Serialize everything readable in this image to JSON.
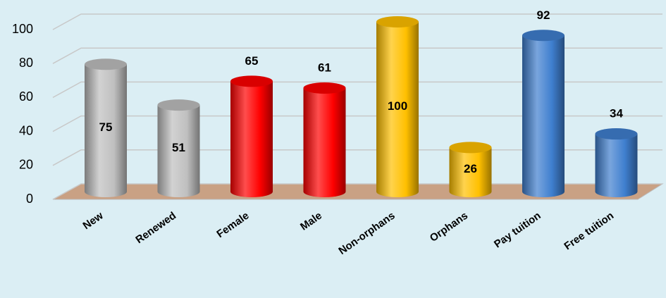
{
  "chart_data": {
    "type": "bar3d",
    "categories": [
      "New",
      "Renewed",
      "Female",
      "Male",
      "Non-orphans",
      "Orphans",
      "Pay tuition",
      "Free tuition"
    ],
    "values": [
      75,
      51,
      65,
      61,
      100,
      26,
      92,
      34
    ],
    "colors": [
      "#bfbfbf",
      "#bfbfbf",
      "#ff0000",
      "#ff0000",
      "#ffc000",
      "#ffc000",
      "#3f7fcf",
      "#3f7fcf"
    ],
    "label_positions": [
      "inside",
      "inside",
      "above",
      "above",
      "inside",
      "inside",
      "above",
      "above"
    ],
    "ylim": [
      0,
      100
    ],
    "yticks": [
      0,
      20,
      40,
      60,
      80,
      100
    ],
    "grid": true
  }
}
